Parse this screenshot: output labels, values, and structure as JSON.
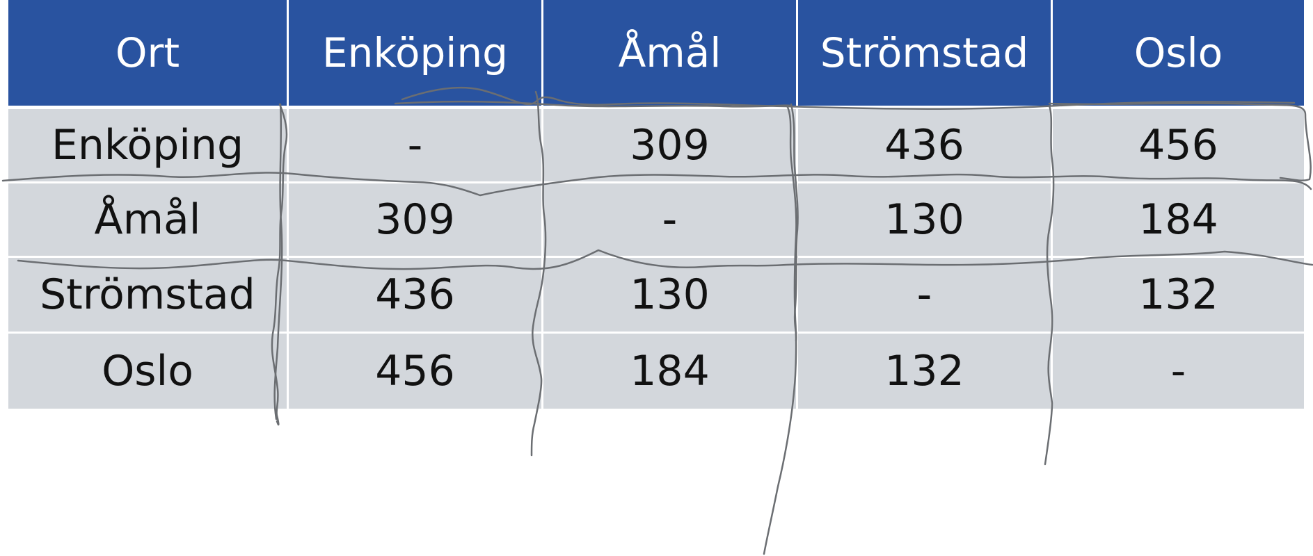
{
  "table": {
    "headers": [
      "Ort",
      "Enköping",
      "Åmål",
      "Strömstad",
      "Oslo"
    ],
    "rows": [
      [
        "Enköping",
        "-",
        "309",
        "436",
        "456"
      ],
      [
        "Åmål",
        "309",
        "-",
        "130",
        "184"
      ],
      [
        "Strömstad",
        "436",
        "130",
        "-",
        "132"
      ],
      [
        "Oslo",
        "456",
        "184",
        "132",
        "-"
      ]
    ]
  },
  "colors": {
    "header_background": "#2953a0",
    "header_text": "#ffffff",
    "row_background": "#d3d7dc",
    "row_text": "#111111",
    "scribble_stroke": "#6b6e72"
  }
}
